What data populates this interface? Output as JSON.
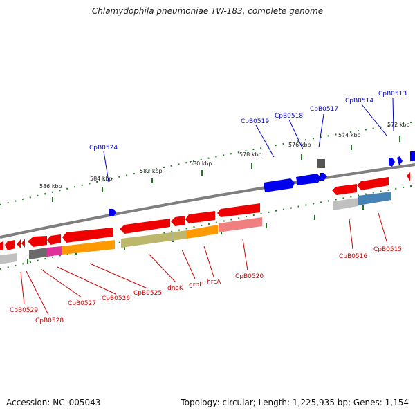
{
  "title": "Chlamydophila pneumoniae TW-183, complete genome",
  "footer": {
    "accession": "Accession: NC_005043",
    "topology": "Topology: circular; Length: 1,225,935 bp; Genes: 1,154"
  },
  "scale_labels": [
    "586 kbp",
    "584 kbp",
    "582 kbp",
    "580 kbp",
    "578 kbp",
    "576 kbp",
    "574 kbp",
    "572 kbp"
  ],
  "forward_gene_labels": [
    "CpB0524",
    "CpB0519",
    "CpB0518",
    "CpB0517",
    "CpB0514",
    "CpB0513"
  ],
  "reverse_gene_labels": [
    "CpB0529",
    "CpB0528",
    "CpB0527",
    "CpB0526",
    "CpB0525",
    "dnaK",
    "grpE",
    "hrcA",
    "CpB0520",
    "CpB0516",
    "CpB0515"
  ],
  "colors": {
    "forward_gene": "#0000ee",
    "reverse_gene": "#ee0000",
    "backbone": "#7f7f7f",
    "ticks": "#1a7a1a",
    "label_blue": "#0000cc",
    "label_red": "#cc0000"
  }
}
